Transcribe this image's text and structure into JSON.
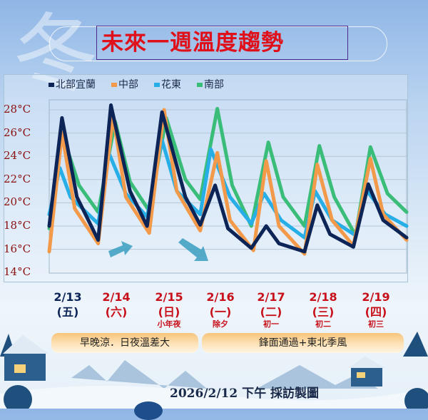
{
  "title": "未來一週溫度趨勢",
  "watermark": "冬",
  "legend": [
    {
      "label": "北部宜蘭",
      "color": "#0d2456"
    },
    {
      "label": "中部",
      "color": "#f39a4a"
    },
    {
      "label": "花東",
      "color": "#27aee6"
    },
    {
      "label": "南部",
      "color": "#3bbd7a"
    }
  ],
  "dates": [
    {
      "date": "2/13",
      "weekday": "(五)",
      "note": "",
      "color": "#0d2456"
    },
    {
      "date": "2/14",
      "weekday": "(六)",
      "note": "",
      "color": "#c8101a"
    },
    {
      "date": "2/15",
      "weekday": "(日)",
      "note": "小年夜",
      "color": "#c8101a"
    },
    {
      "date": "2/16",
      "weekday": "(一)",
      "note": "除夕",
      "color": "#c8101a"
    },
    {
      "date": "2/17",
      "weekday": "(二)",
      "note": "初一",
      "color": "#c8101a"
    },
    {
      "date": "2/18",
      "weekday": "(三)",
      "note": "初二",
      "color": "#c8101a"
    },
    {
      "date": "2/19",
      "weekday": "(四)",
      "note": "初三",
      "color": "#c8101a"
    }
  ],
  "banners": [
    "早晚涼．日夜溫差大",
    "鋒面通過+東北季風"
  ],
  "footer": "2026/2/12 下午 採訪製圖",
  "chart_data": {
    "type": "line",
    "title": "未來一週溫度趨勢",
    "xlabel": "",
    "ylabel": "",
    "ylim": [
      14,
      29
    ],
    "xlim": [
      "02/13 00",
      "02/20 00"
    ],
    "yticks": [
      "14°C",
      "16°C",
      "18°C",
      "20°C",
      "22°C",
      "24°C",
      "26°C",
      "28°C"
    ],
    "ytick_values": [
      14,
      16,
      18,
      20,
      22,
      24,
      26,
      28
    ],
    "grid": true,
    "legend_position": "top-left",
    "series": [
      {
        "name": "北部宜蘭",
        "color": "#0d2456",
        "points": [
          [
            "02/13 00",
            18.0
          ],
          [
            "02/13 06",
            27.3
          ],
          [
            "02/13 13",
            20.5
          ],
          [
            "02/13 23",
            16.8
          ],
          [
            "02/14 05",
            28.4
          ],
          [
            "02/14 14",
            21.0
          ],
          [
            "02/14 22",
            18.0
          ],
          [
            "02/15 05",
            27.8
          ],
          [
            "02/15 16",
            20.5
          ],
          [
            "02/15 23",
            18.1
          ],
          [
            "02/16 06",
            21.5
          ],
          [
            "02/16 12",
            17.8
          ],
          [
            "02/16 23",
            16.1
          ],
          [
            "02/17 06",
            18.0
          ],
          [
            "02/17 12",
            16.5
          ],
          [
            "02/18 00",
            15.8
          ],
          [
            "02/18 06",
            19.8
          ],
          [
            "02/18 12",
            17.3
          ],
          [
            "02/18 23",
            16.2
          ],
          [
            "02/19 06",
            21.6
          ],
          [
            "02/19 13",
            18.5
          ],
          [
            "02/20 00",
            17.0
          ]
        ]
      },
      {
        "name": "中部",
        "color": "#f39a4a",
        "points": [
          [
            "02/13 00",
            15.8
          ],
          [
            "02/13 06",
            26.0
          ],
          [
            "02/13 12",
            19.5
          ],
          [
            "02/13 23",
            16.5
          ],
          [
            "02/14 06",
            27.5
          ],
          [
            "02/14 12",
            20.5
          ],
          [
            "02/14 23",
            17.4
          ],
          [
            "02/15 06",
            28.0
          ],
          [
            "02/15 12",
            21.0
          ],
          [
            "02/15 23",
            17.6
          ],
          [
            "02/16 07",
            24.3
          ],
          [
            "02/16 13",
            18.5
          ],
          [
            "02/16 24",
            15.9
          ],
          [
            "02/17 06",
            23.6
          ],
          [
            "02/17 12",
            18.0
          ],
          [
            "02/18 00",
            15.6
          ],
          [
            "02/18 06",
            23.3
          ],
          [
            "02/18 13",
            18.5
          ],
          [
            "02/18 23",
            16.3
          ],
          [
            "02/19 07",
            23.8
          ],
          [
            "02/19 13",
            19.0
          ],
          [
            "02/20 00",
            16.8
          ]
        ]
      },
      {
        "name": "花東",
        "color": "#27aee6",
        "points": [
          [
            "02/13 00",
            19.0
          ],
          [
            "02/13 05",
            23.0
          ],
          [
            "02/13 10",
            20.5
          ],
          [
            "02/13 23",
            18.2
          ],
          [
            "02/14 04",
            24.3
          ],
          [
            "02/14 12",
            20.8
          ],
          [
            "02/14 22",
            18.8
          ],
          [
            "02/15 05",
            25.4
          ],
          [
            "02/15 12",
            21.0
          ],
          [
            "02/15 23",
            19.0
          ],
          [
            "02/16 04",
            24.6
          ],
          [
            "02/16 13",
            20.5
          ],
          [
            "02/16 23",
            18.2
          ],
          [
            "02/17 05",
            20.8
          ],
          [
            "02/17 13",
            18.5
          ],
          [
            "02/18 00",
            17.0
          ],
          [
            "02/18 05",
            21.0
          ],
          [
            "02/18 13",
            18.5
          ],
          [
            "02/19 00",
            17.2
          ],
          [
            "02/19 05",
            21.1
          ],
          [
            "02/19 14",
            19.0
          ],
          [
            "02/20 00",
            18.0
          ]
        ]
      },
      {
        "name": "南部",
        "color": "#3bbd7a",
        "points": [
          [
            "02/13 00",
            17.8
          ],
          [
            "02/13 06",
            26.0
          ],
          [
            "02/13 14",
            21.5
          ],
          [
            "02/13 23",
            19.2
          ],
          [
            "02/14 07",
            27.0
          ],
          [
            "02/14 14",
            21.8
          ],
          [
            "02/14 23",
            19.3
          ],
          [
            "02/15 07",
            27.3
          ],
          [
            "02/15 16",
            22.0
          ],
          [
            "02/15 23",
            20.3
          ],
          [
            "02/16 07",
            28.1
          ],
          [
            "02/16 14",
            21.5
          ],
          [
            "02/16 23",
            18.0
          ],
          [
            "02/17 07",
            25.2
          ],
          [
            "02/17 14",
            20.5
          ],
          [
            "02/18 00",
            18.0
          ],
          [
            "02/18 07",
            24.9
          ],
          [
            "02/18 14",
            20.5
          ],
          [
            "02/19 00",
            17.2
          ],
          [
            "02/19 07",
            24.8
          ],
          [
            "02/19 15",
            20.8
          ],
          [
            "02/20 00",
            19.2
          ]
        ]
      }
    ]
  }
}
